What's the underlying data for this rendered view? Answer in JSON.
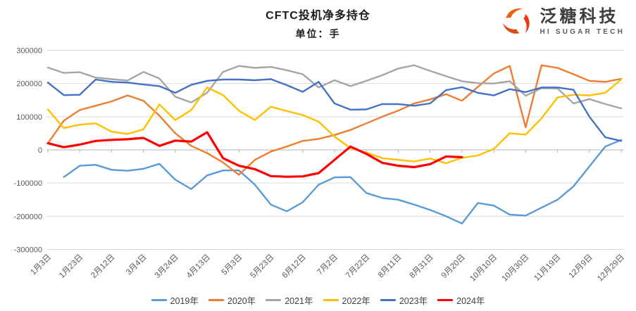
{
  "header": {
    "title": "CFTC投机净多持仓",
    "subtitle": "单位：手"
  },
  "logo": {
    "name": "泛糖科技",
    "tagline": "HI SUGAR TECH",
    "icon": "swirl-icon",
    "icon_colors": [
      "#F2600F",
      "#E8380D",
      "#E04A10"
    ]
  },
  "chart_data": {
    "type": "line",
    "title": "CFTC投机净多持仓",
    "unit": "手",
    "grid": true,
    "legend_position": "bottom",
    "ylim": [
      -300000,
      300000
    ],
    "y_ticks": [
      300000,
      200000,
      100000,
      0,
      -100000,
      -200000,
      -300000
    ],
    "x_tick_labels": [
      "1月3日",
      "1月23日",
      "2月12日",
      "3月4日",
      "3月24日",
      "4月13日",
      "5月3日",
      "5月23日",
      "6月12日",
      "7月2日",
      "7月22日",
      "8月11日",
      "8月31日",
      "9月20日",
      "10月10日",
      "10月30日",
      "11月19日",
      "12月9日",
      "12月29日"
    ],
    "x_dates": [
      "1月3日",
      "1月13日",
      "1月23日",
      "2月2日",
      "2月12日",
      "2月22日",
      "3月4日",
      "3月14日",
      "3月24日",
      "4月3日",
      "4月13日",
      "4月23日",
      "5月3日",
      "5月13日",
      "5月23日",
      "6月2日",
      "6月12日",
      "6月22日",
      "7月2日",
      "7月12日",
      "7月22日",
      "8月1日",
      "8月11日",
      "8月21日",
      "8月31日",
      "9月10日",
      "9月20日",
      "9月30日",
      "10月10日",
      "10月20日",
      "10月30日",
      "11月9日",
      "11月19日",
      "11月29日",
      "12月9日",
      "12月19日",
      "12月29日"
    ],
    "axis_color": "#b5b5b5",
    "gridline_color": "#d9d9d9",
    "tick_label_color": "#595959",
    "series": [
      {
        "name": "2019年",
        "color": "#5B9BD5",
        "width": 2.4,
        "values": [
          null,
          -82000,
          -48000,
          -45000,
          -60000,
          -63000,
          -57000,
          -42000,
          -90000,
          -118000,
          -77000,
          -62000,
          -62000,
          -105000,
          -165000,
          -185000,
          -158000,
          -105000,
          -83000,
          -82000,
          -130000,
          -145000,
          -150000,
          -165000,
          -181000,
          -200000,
          -222000,
          -160000,
          -168000,
          -195000,
          -198000,
          -174000,
          -150000,
          -110000,
          -50000,
          10000,
          30000
        ]
      },
      {
        "name": "2020年",
        "color": "#ED7D31",
        "width": 2.4,
        "values": [
          20000,
          88000,
          120000,
          133000,
          146000,
          164000,
          148000,
          103000,
          50000,
          12000,
          -10000,
          -38000,
          -75000,
          -30000,
          -5000,
          10000,
          27000,
          33000,
          45000,
          60000,
          80000,
          100000,
          118000,
          140000,
          152000,
          168000,
          148000,
          190000,
          230000,
          253000,
          68000,
          255000,
          247000,
          228000,
          208000,
          205000,
          214000
        ]
      },
      {
        "name": "2021年",
        "color": "#A5A5A5",
        "width": 2.4,
        "values": [
          248000,
          232000,
          234000,
          218000,
          213000,
          209000,
          235000,
          215000,
          160000,
          143000,
          172000,
          235000,
          253000,
          247000,
          250000,
          240000,
          228000,
          188000,
          210000,
          192000,
          208000,
          225000,
          245000,
          255000,
          238000,
          222000,
          207000,
          201000,
          200000,
          207000,
          163000,
          186000,
          185000,
          140000,
          153000,
          138000,
          125000
        ]
      },
      {
        "name": "2022年",
        "color": "#FFC000",
        "width": 2.4,
        "values": [
          122000,
          66000,
          76000,
          80000,
          55000,
          48000,
          62000,
          137000,
          90000,
          120000,
          188000,
          165000,
          118000,
          90000,
          130000,
          117000,
          105000,
          85000,
          40000,
          5000,
          -8000,
          -25000,
          -30000,
          -35000,
          -26000,
          -40000,
          -24000,
          -17000,
          3000,
          50000,
          46000,
          95000,
          158000,
          166000,
          164000,
          172000,
          212000
        ]
      },
      {
        "name": "2023年",
        "color": "#4472C4",
        "width": 2.4,
        "values": [
          203000,
          165000,
          166000,
          212000,
          205000,
          203000,
          197000,
          192000,
          172000,
          196000,
          208000,
          212000,
          212000,
          210000,
          213000,
          195000,
          175000,
          205000,
          140000,
          121000,
          122000,
          138000,
          138000,
          133000,
          140000,
          180000,
          189000,
          172000,
          164000,
          183000,
          174000,
          188000,
          188000,
          181000,
          100000,
          38000,
          27000
        ]
      },
      {
        "name": "2024年",
        "color": "#FF0000",
        "width": 3.2,
        "values": [
          20000,
          8000,
          16000,
          27000,
          30000,
          32000,
          36000,
          12000,
          28000,
          25000,
          53000,
          -25000,
          -48000,
          -58000,
          -79000,
          -81000,
          -80000,
          -70000,
          -30000,
          10000,
          -12000,
          -39000,
          -48000,
          -52000,
          -43000,
          -20000,
          -22000,
          null,
          null,
          null,
          null,
          null,
          null,
          null,
          null,
          null,
          null
        ]
      }
    ]
  }
}
